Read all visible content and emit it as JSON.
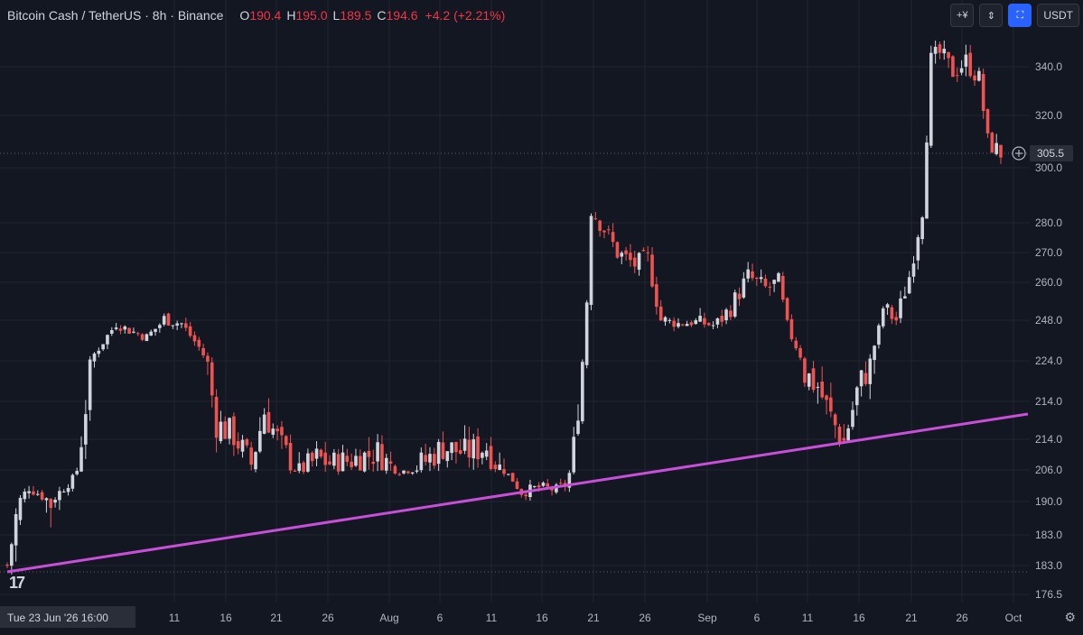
{
  "legend": {
    "symbol": "Bitcoin Cash / TetherUS · 8h · Binance",
    "o_label": "O",
    "o_value": "190.4",
    "h_label": "H",
    "h_value": "195.0",
    "l_label": "L",
    "l_value": "189.5",
    "c_label": "C",
    "c_value": "194.6",
    "change": "+4.2 (+2.21%)"
  },
  "toolbar": {
    "scale_label": "+¥",
    "currency": "USDT"
  },
  "colors": {
    "background": "#131722",
    "up": "#d1d4dc",
    "down": "#ef5350",
    "trendline": "#c84fd8",
    "grid": "#1f2430"
  },
  "chart_data": {
    "type": "candlestick",
    "y_tick_labels": [
      "340.0",
      "320.0",
      "300.0",
      "280.0",
      "270.0",
      "260.0",
      "248.0",
      "224.0",
      "214.0",
      "214.0",
      "206.0",
      "190.0",
      "183.0",
      "183.0",
      "176.5"
    ],
    "x_tick_labels": [
      "11",
      "16",
      "21",
      "26",
      "Aug",
      "6",
      "11",
      "16",
      "21",
      "26",
      "Sep",
      "6",
      "11",
      "16",
      "21",
      "26",
      "Oct"
    ],
    "x_cursor_label": "Tue 23 Jun '26   16:00",
    "price_label": "305.5",
    "key_levels": [
      {
        "x": 0,
        "close": 183
      },
      {
        "x": 5,
        "close": 196
      },
      {
        "x": 10,
        "close": 190
      },
      {
        "x": 15,
        "close": 200
      },
      {
        "x": 20,
        "close": 228
      },
      {
        "x": 25,
        "close": 246
      },
      {
        "x": 28,
        "close": 242
      },
      {
        "x": 32,
        "close": 238
      },
      {
        "x": 36,
        "close": 248
      },
      {
        "x": 40,
        "close": 246
      },
      {
        "x": 44,
        "close": 232
      },
      {
        "x": 48,
        "close": 214
      },
      {
        "x": 52,
        "close": 212
      },
      {
        "x": 56,
        "close": 207
      },
      {
        "x": 59,
        "close": 216
      },
      {
        "x": 63,
        "close": 210
      },
      {
        "x": 67,
        "close": 205
      },
      {
        "x": 71,
        "close": 208
      },
      {
        "x": 75,
        "close": 207
      },
      {
        "x": 80,
        "close": 208
      },
      {
        "x": 85,
        "close": 209
      },
      {
        "x": 90,
        "close": 205
      },
      {
        "x": 95,
        "close": 207
      },
      {
        "x": 100,
        "close": 210
      },
      {
        "x": 105,
        "close": 209
      },
      {
        "x": 110,
        "close": 210
      },
      {
        "x": 114,
        "close": 205
      },
      {
        "x": 118,
        "close": 194
      },
      {
        "x": 122,
        "close": 196
      },
      {
        "x": 126,
        "close": 195
      },
      {
        "x": 128,
        "close": 197
      },
      {
        "x": 130,
        "close": 210
      },
      {
        "x": 132,
        "close": 224
      },
      {
        "x": 134,
        "close": 285
      },
      {
        "x": 137,
        "close": 278
      },
      {
        "x": 140,
        "close": 270
      },
      {
        "x": 144,
        "close": 266
      },
      {
        "x": 147,
        "close": 268
      },
      {
        "x": 150,
        "close": 248
      },
      {
        "x": 154,
        "close": 246
      },
      {
        "x": 158,
        "close": 247
      },
      {
        "x": 162,
        "close": 245
      },
      {
        "x": 166,
        "close": 252
      },
      {
        "x": 170,
        "close": 262
      },
      {
        "x": 174,
        "close": 258
      },
      {
        "x": 177,
        "close": 260
      },
      {
        "x": 180,
        "close": 238
      },
      {
        "x": 183,
        "close": 222
      },
      {
        "x": 186,
        "close": 220
      },
      {
        "x": 189,
        "close": 215
      },
      {
        "x": 192,
        "close": 211
      },
      {
        "x": 195,
        "close": 219
      },
      {
        "x": 198,
        "close": 224
      },
      {
        "x": 201,
        "close": 252
      },
      {
        "x": 204,
        "close": 248
      },
      {
        "x": 207,
        "close": 262
      },
      {
        "x": 210,
        "close": 285
      },
      {
        "x": 212,
        "close": 342
      },
      {
        "x": 214,
        "close": 345
      },
      {
        "x": 217,
        "close": 338
      },
      {
        "x": 220,
        "close": 342
      },
      {
        "x": 223,
        "close": 335
      },
      {
        "x": 225,
        "close": 310
      },
      {
        "x": 228,
        "close": 305.5
      }
    ],
    "trendline": {
      "x1": 0,
      "y1": 183,
      "x2": 228,
      "y2": 214
    }
  }
}
